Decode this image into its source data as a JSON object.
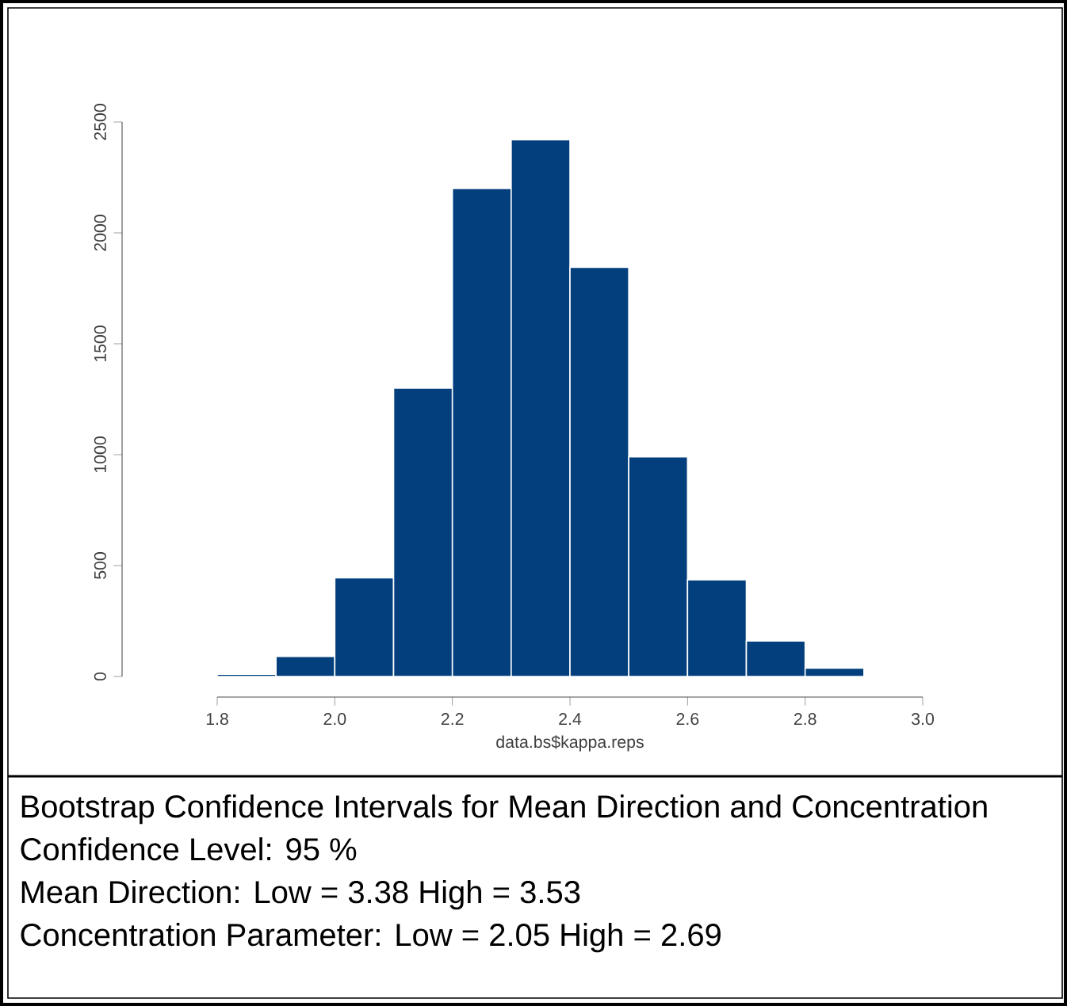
{
  "chart_data": {
    "type": "histogram",
    "title": "Bootstrap Confidence Intervals for Mean Direction and Concentration",
    "xlabel": "data.bs$kappa.reps",
    "bins": [
      1.8,
      1.9,
      2.0,
      2.1,
      2.2,
      2.3,
      2.4,
      2.5,
      2.6,
      2.7,
      2.8,
      2.9
    ],
    "values": [
      10,
      90,
      445,
      1300,
      2200,
      2420,
      1845,
      990,
      436,
      160,
      38
    ],
    "color": "#023f7c",
    "xlim": [
      1.8,
      3.0
    ],
    "xticks": [
      {
        "value": 1.8,
        "label": "1.8"
      },
      {
        "value": 2.0,
        "label": "2.0"
      },
      {
        "value": 2.2,
        "label": "2.2"
      },
      {
        "value": 2.4,
        "label": "2.4"
      },
      {
        "value": 2.6,
        "label": "2.6"
      },
      {
        "value": 2.8,
        "label": "2.8"
      },
      {
        "value": 3.0,
        "label": "3.0"
      }
    ],
    "ylim": [
      0,
      2500
    ],
    "yticks": [
      0,
      500,
      1000,
      1500,
      2000,
      2500
    ],
    "annotations": [
      "Confidence Level:   95 %",
      "Mean Direction:          Low = 3.38   High = 3.53",
      "Concentration Parameter:   Low = 2.05   High = 2.69"
    ]
  }
}
